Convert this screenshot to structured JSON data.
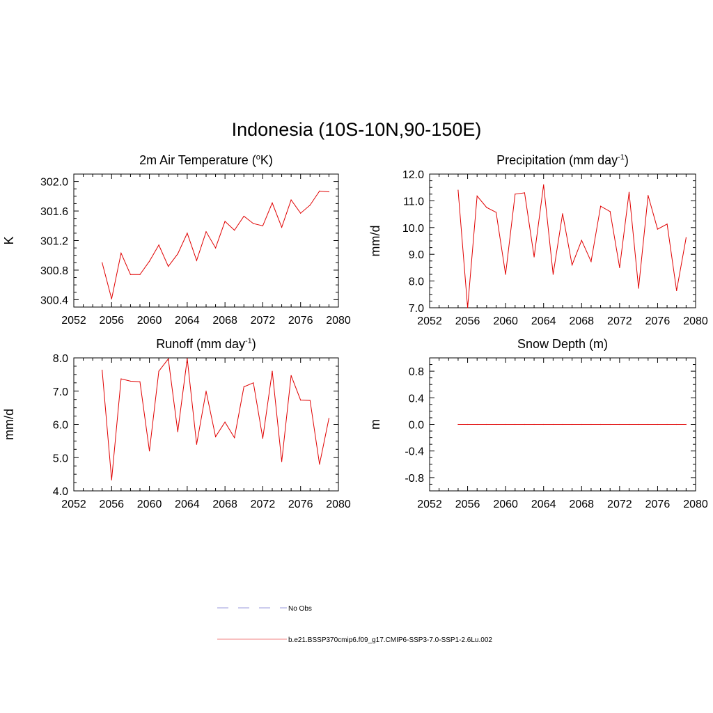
{
  "title": "Indonesia (10S-10N,90-150E)",
  "colors": {
    "model": "#e00000",
    "obs": "#9999dd",
    "axis": "#000000"
  },
  "legend": [
    {
      "label": "No Obs",
      "style": "dashed",
      "color": "#9999dd"
    },
    {
      "label": "b.e21.BSSP370cmip6.f09_g17.CMIP6-SSP3-7.0-SSP1-2.6Lu.002",
      "style": "solid",
      "color": "#f08080"
    }
  ],
  "chart_data": [
    {
      "type": "line",
      "title": "2m Air Temperature (",
      "title_sup": "o",
      "title_end": "K)",
      "xlabel": "",
      "ylabel": "K",
      "xlim": [
        2052,
        2080
      ],
      "ylim": [
        300.3,
        302.1
      ],
      "xticks": [
        "2052",
        "2056",
        "2060",
        "2064",
        "2068",
        "2072",
        "2076",
        "2080"
      ],
      "yticks": [
        "300.4",
        "300.8",
        "301.2",
        "301.6",
        "302.0"
      ],
      "x": [
        2055,
        2056,
        2057,
        2058,
        2059,
        2060,
        2061,
        2062,
        2063,
        2064,
        2065,
        2066,
        2067,
        2068,
        2069,
        2070,
        2071,
        2072,
        2073,
        2074,
        2075,
        2076,
        2077,
        2078,
        2079
      ],
      "series": [
        {
          "values": [
            300.9,
            300.41,
            301.03,
            300.74,
            300.74,
            300.92,
            301.14,
            300.85,
            301.02,
            301.3,
            300.93,
            301.32,
            301.1,
            301.46,
            301.34,
            301.53,
            301.43,
            301.4,
            301.71,
            301.38,
            301.75,
            301.57,
            301.68,
            301.87,
            301.86
          ]
        }
      ]
    },
    {
      "type": "line",
      "title": "Precipitation (mm day",
      "title_sup": "-1",
      "title_end": ")",
      "xlabel": "",
      "ylabel": "mm/d",
      "xlim": [
        2052,
        2080
      ],
      "ylim": [
        7.0,
        12.0
      ],
      "xticks": [
        "2052",
        "2056",
        "2060",
        "2064",
        "2068",
        "2072",
        "2076",
        "2080"
      ],
      "yticks": [
        "7.0",
        "8.0",
        "9.0",
        "10.0",
        "11.0",
        "12.0"
      ],
      "x": [
        2055,
        2056,
        2057,
        2058,
        2059,
        2060,
        2061,
        2062,
        2063,
        2064,
        2065,
        2066,
        2067,
        2068,
        2069,
        2070,
        2071,
        2072,
        2073,
        2074,
        2075,
        2076,
        2077,
        2078,
        2079
      ],
      "series": [
        {
          "values": [
            11.4,
            7.0,
            11.18,
            10.75,
            10.57,
            8.25,
            11.25,
            11.3,
            8.9,
            11.6,
            8.25,
            10.52,
            8.6,
            9.52,
            8.73,
            10.8,
            10.6,
            8.5,
            11.32,
            7.73,
            11.2,
            9.94,
            10.13,
            7.64,
            9.62
          ]
        }
      ]
    },
    {
      "type": "line",
      "title": "Runoff (mm day",
      "title_sup": "-1",
      "title_end": ")",
      "xlabel": "",
      "ylabel": "mm/d",
      "xlim": [
        2052,
        2080
      ],
      "ylim": [
        4.0,
        8.0
      ],
      "xticks": [
        "2052",
        "2056",
        "2060",
        "2064",
        "2068",
        "2072",
        "2076",
        "2080"
      ],
      "yticks": [
        "4.0",
        "5.0",
        "6.0",
        "7.0",
        "8.0"
      ],
      "x": [
        2055,
        2056,
        2057,
        2058,
        2059,
        2060,
        2061,
        2062,
        2063,
        2064,
        2065,
        2066,
        2067,
        2068,
        2069,
        2070,
        2071,
        2072,
        2073,
        2074,
        2075,
        2076,
        2077,
        2078,
        2079
      ],
      "series": [
        {
          "values": [
            7.63,
            4.33,
            7.37,
            7.3,
            7.28,
            5.2,
            7.6,
            7.97,
            5.78,
            7.98,
            5.4,
            7.0,
            5.63,
            6.07,
            5.6,
            7.13,
            7.25,
            5.58,
            7.6,
            4.88,
            7.47,
            6.73,
            6.72,
            4.8,
            6.18
          ]
        }
      ]
    },
    {
      "type": "line",
      "title": "Snow Depth (m)",
      "title_sup": "",
      "title_end": "",
      "xlabel": "",
      "ylabel": "m",
      "xlim": [
        2052,
        2080
      ],
      "ylim": [
        -1.0,
        1.0
      ],
      "xticks": [
        "2052",
        "2056",
        "2060",
        "2064",
        "2068",
        "2072",
        "2076",
        "2080"
      ],
      "yticks": [
        "-0.8",
        "-0.4",
        "0.0",
        "0.4",
        "0.8"
      ],
      "x": [
        2055,
        2056,
        2057,
        2058,
        2059,
        2060,
        2061,
        2062,
        2063,
        2064,
        2065,
        2066,
        2067,
        2068,
        2069,
        2070,
        2071,
        2072,
        2073,
        2074,
        2075,
        2076,
        2077,
        2078,
        2079
      ],
      "series": [
        {
          "values": [
            0,
            0,
            0,
            0,
            0,
            0,
            0,
            0,
            0,
            0,
            0,
            0,
            0,
            0,
            0,
            0,
            0,
            0,
            0,
            0,
            0,
            0,
            0,
            0,
            0
          ]
        }
      ]
    }
  ]
}
